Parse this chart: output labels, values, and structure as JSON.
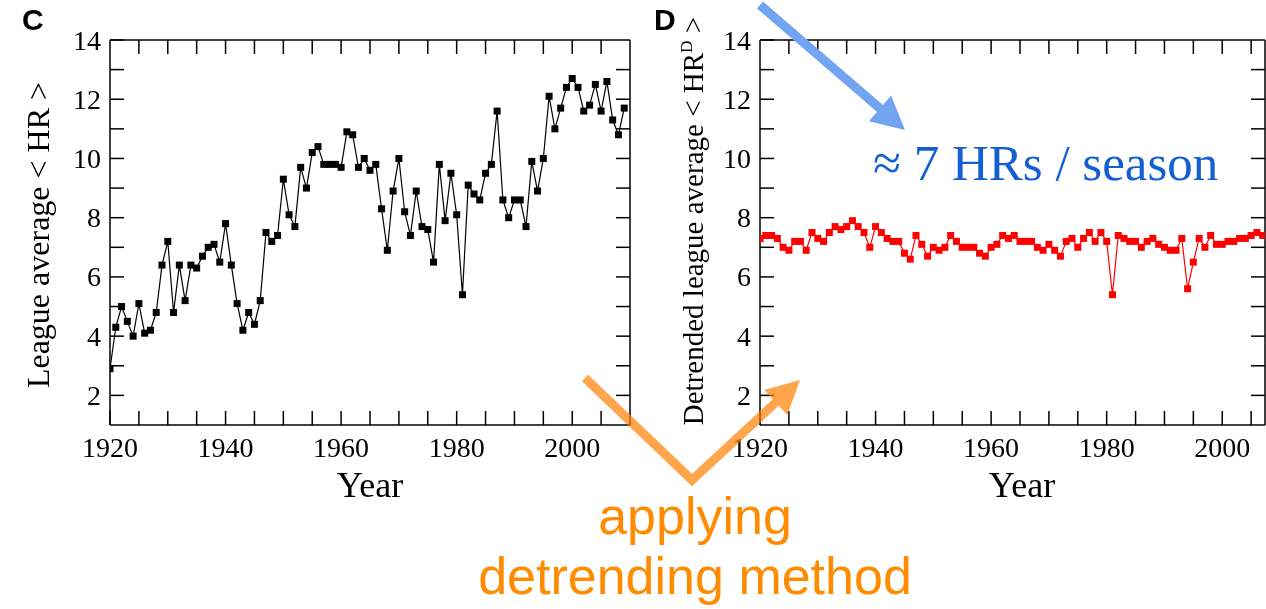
{
  "chart_data": [
    {
      "type": "line",
      "title": "C",
      "xlabel": "Year",
      "ylabel": "League average < HR >",
      "x": [
        1920,
        1921,
        1922,
        1923,
        1924,
        1925,
        1926,
        1927,
        1928,
        1929,
        1930,
        1931,
        1932,
        1933,
        1934,
        1935,
        1936,
        1937,
        1938,
        1939,
        1940,
        1941,
        1942,
        1943,
        1944,
        1945,
        1946,
        1947,
        1948,
        1949,
        1950,
        1951,
        1952,
        1953,
        1954,
        1955,
        1956,
        1957,
        1958,
        1959,
        1960,
        1961,
        1962,
        1963,
        1964,
        1965,
        1966,
        1967,
        1968,
        1969,
        1970,
        1971,
        1972,
        1973,
        1974,
        1975,
        1976,
        1977,
        1978,
        1979,
        1980,
        1981,
        1982,
        1983,
        1984,
        1985,
        1986,
        1987,
        1988,
        1989,
        1990,
        1991,
        1992,
        1993,
        1994,
        1995,
        1996,
        1997,
        1998,
        1999,
        2000,
        2001,
        2002,
        2003,
        2004,
        2005,
        2006,
        2007,
        2008,
        2009
      ],
      "series": [
        {
          "color": "#000000",
          "values": [
            2.9,
            4.3,
            5.0,
            4.5,
            4.0,
            5.1,
            4.1,
            4.2,
            4.8,
            6.4,
            7.2,
            4.8,
            6.4,
            5.2,
            6.4,
            6.3,
            6.7,
            7.0,
            7.1,
            6.5,
            7.8,
            6.4,
            5.1,
            4.2,
            4.8,
            4.4,
            5.2,
            7.5,
            7.2,
            7.4,
            9.3,
            8.1,
            7.7,
            9.7,
            9.0,
            10.2,
            10.4,
            9.8,
            9.8,
            9.8,
            9.7,
            10.9,
            10.8,
            9.7,
            10.0,
            9.6,
            9.8,
            8.3,
            6.9,
            8.9,
            10.0,
            8.2,
            7.4,
            8.9,
            7.7,
            7.6,
            6.5,
            9.8,
            7.9,
            9.5,
            8.1,
            5.4,
            9.1,
            8.8,
            8.6,
            9.5,
            9.8,
            11.6,
            8.6,
            8.0,
            8.6,
            8.6,
            7.7,
            9.9,
            8.9,
            10.0,
            12.1,
            11.0,
            11.7,
            12.4,
            12.7,
            12.4,
            11.6,
            11.8,
            12.5,
            11.6,
            12.6,
            11.3,
            10.8,
            11.7
          ]
        }
      ],
      "xlim": [
        1920,
        2010
      ],
      "ylim": [
        1,
        14
      ],
      "xticks": [
        1920,
        {
          "value": 1925,
          "label": null
        },
        {
          "value": 1930,
          "label": null
        },
        {
          "value": 1935,
          "label": null
        },
        1940,
        {
          "value": 1945,
          "label": null
        },
        {
          "value": 1950,
          "label": null
        },
        {
          "value": 1955,
          "label": null
        },
        1960,
        {
          "value": 1965,
          "label": null
        },
        {
          "value": 1970,
          "label": null
        },
        {
          "value": 1975,
          "label": null
        },
        1980,
        {
          "value": 1985,
          "label": null
        },
        {
          "value": 1990,
          "label": null
        },
        {
          "value": 1995,
          "label": null
        },
        2000,
        {
          "value": 2005,
          "label": null
        }
      ],
      "yticks": [
        2,
        {
          "value": 3,
          "label": null
        },
        4,
        {
          "value": 5,
          "label": null
        },
        6,
        {
          "value": 7,
          "label": null
        },
        8,
        {
          "value": 9,
          "label": null
        },
        10,
        {
          "value": 11,
          "label": null
        },
        12,
        {
          "value": 13,
          "label": null
        },
        14
      ],
      "marker": "square"
    },
    {
      "type": "line",
      "title": "D",
      "xlabel": "Year",
      "ylabel": "Detrended league average < HR$^{D}$ >",
      "x": [
        1920,
        1921,
        1922,
        1923,
        1924,
        1925,
        1926,
        1927,
        1928,
        1929,
        1930,
        1931,
        1932,
        1933,
        1934,
        1935,
        1936,
        1937,
        1938,
        1939,
        1940,
        1941,
        1942,
        1943,
        1944,
        1945,
        1946,
        1947,
        1948,
        1949,
        1950,
        1951,
        1952,
        1953,
        1954,
        1955,
        1956,
        1957,
        1958,
        1959,
        1960,
        1961,
        1962,
        1963,
        1964,
        1965,
        1966,
        1967,
        1968,
        1969,
        1970,
        1971,
        1972,
        1973,
        1974,
        1975,
        1976,
        1977,
        1978,
        1979,
        1980,
        1981,
        1982,
        1983,
        1984,
        1985,
        1986,
        1987,
        1988,
        1989,
        1990,
        1991,
        1992,
        1993,
        1994,
        1995,
        1996,
        1997,
        1998,
        1999,
        2000,
        2001,
        2002,
        2003,
        2004,
        2005,
        2006,
        2007
      ],
      "series": [
        {
          "color": "#ff0000",
          "values": [
            7.3,
            7.4,
            7.4,
            7.3,
            7.0,
            6.9,
            7.2,
            7.2,
            6.9,
            7.5,
            7.3,
            7.2,
            7.5,
            7.7,
            7.6,
            7.7,
            7.9,
            7.7,
            7.5,
            7.0,
            7.7,
            7.5,
            7.3,
            7.2,
            7.2,
            6.8,
            6.6,
            7.4,
            7.1,
            6.7,
            7.0,
            6.9,
            7.0,
            7.4,
            7.2,
            7.0,
            7.0,
            7.0,
            6.8,
            6.7,
            7.0,
            7.1,
            7.4,
            7.3,
            7.4,
            7.2,
            7.2,
            7.2,
            7.0,
            6.9,
            7.1,
            6.9,
            6.7,
            7.2,
            7.3,
            7.0,
            7.3,
            7.5,
            7.2,
            7.5,
            7.2,
            5.4,
            7.4,
            7.3,
            7.2,
            7.2,
            7.0,
            7.2,
            7.3,
            7.1,
            7.0,
            6.9,
            6.9,
            7.3,
            5.6,
            6.5,
            7.3,
            7.0,
            7.4,
            7.1,
            7.1,
            7.2,
            7.2,
            7.3,
            7.3,
            7.4,
            7.5,
            7.4
          ]
        }
      ],
      "xlim": [
        1920,
        2007.4
      ],
      "ylim": [
        1,
        14
      ],
      "xticks": [
        1920,
        {
          "value": 1925,
          "label": null
        },
        {
          "value": 1930,
          "label": null
        },
        {
          "value": 1935,
          "label": null
        },
        1940,
        {
          "value": 1945,
          "label": null
        },
        {
          "value": 1950,
          "label": null
        },
        {
          "value": 1955,
          "label": null
        },
        1960,
        {
          "value": 1965,
          "label": null
        },
        {
          "value": 1970,
          "label": null
        },
        {
          "value": 1975,
          "label": null
        },
        1980,
        {
          "value": 1985,
          "label": null
        },
        {
          "value": 1990,
          "label": null
        },
        {
          "value": 1995,
          "label": null
        },
        2000,
        {
          "value": 2005,
          "label": null
        }
      ],
      "yticks": [
        2,
        {
          "value": 3,
          "label": null
        },
        4,
        {
          "value": 5,
          "label": null
        },
        6,
        {
          "value": 7,
          "label": null
        },
        8,
        {
          "value": 9,
          "label": null
        },
        10,
        {
          "value": 11,
          "label": null
        },
        12,
        {
          "value": 13,
          "label": null
        },
        14
      ],
      "marker": "square",
      "annotations": [
        "≈ 7 HRs / season",
        "applying detrending method"
      ]
    }
  ]
}
